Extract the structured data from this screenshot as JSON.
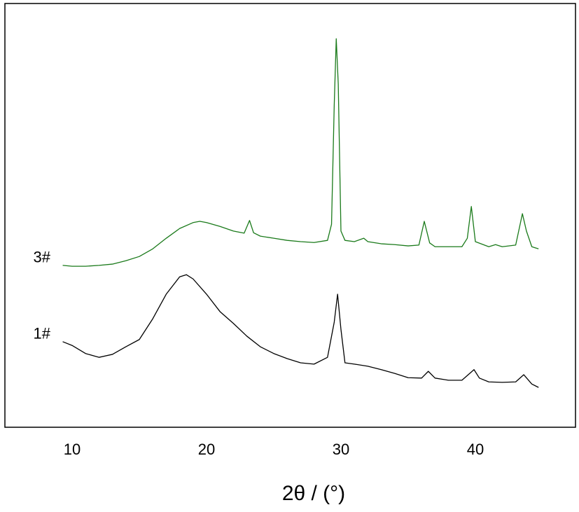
{
  "chart_data": {
    "type": "line",
    "x_label": "2θ / (°)",
    "xlim": [
      5,
      47.45
    ],
    "ylim": [
      0,
      100
    ],
    "xticks": [
      10,
      20,
      30,
      40
    ],
    "series": [
      {
        "name": "3#",
        "color": "#1a7a1a",
        "x": [
          9.3,
          10,
          11,
          12,
          13,
          14,
          15,
          16,
          17,
          18,
          19,
          19.5,
          20,
          21,
          22,
          22.8,
          23.2,
          23.5,
          24,
          25,
          26,
          27,
          28,
          29,
          29.3,
          29.5,
          29.65,
          29.8,
          30,
          30.3,
          31,
          31.7,
          32,
          33,
          34,
          35,
          35.8,
          36.2,
          36.6,
          37,
          38,
          39,
          39.4,
          39.7,
          40,
          41,
          41.5,
          42,
          43,
          43.5,
          43.8,
          44.2,
          44.7
        ],
        "values": [
          38.2,
          38.0,
          38.0,
          38.2,
          38.5,
          39.3,
          40.3,
          42.1,
          44.6,
          46.9,
          48.3,
          48.6,
          48.3,
          47.4,
          46.3,
          45.8,
          48.8,
          45.9,
          45.1,
          44.6,
          44.1,
          43.8,
          43.6,
          44.1,
          47.9,
          76.0,
          91.7,
          81.0,
          46.3,
          44.1,
          43.8,
          44.6,
          43.8,
          43.3,
          43.1,
          42.8,
          43.0,
          48.6,
          43.5,
          42.6,
          42.6,
          42.6,
          44.6,
          52.1,
          43.8,
          42.6,
          43.1,
          42.6,
          43.0,
          50.4,
          46.3,
          42.6,
          42.1
        ]
      },
      {
        "name": "1#",
        "color": "#000000",
        "x": [
          9.3,
          10,
          11,
          12,
          13,
          14,
          15,
          16,
          17,
          18,
          18.5,
          19,
          20,
          21,
          22,
          23,
          24,
          25,
          26,
          27,
          28,
          29,
          29.5,
          29.75,
          30,
          30.3,
          31,
          32,
          33,
          34,
          35,
          36,
          36.5,
          37,
          38,
          39,
          39.9,
          40.3,
          41,
          42,
          43,
          43.6,
          44.2,
          44.7
        ],
        "values": [
          20.2,
          19.3,
          17.4,
          16.5,
          17.2,
          19.0,
          20.7,
          25.6,
          31.4,
          35.5,
          36.0,
          35.0,
          31.4,
          27.3,
          24.5,
          21.5,
          19.0,
          17.4,
          16.2,
          15.2,
          14.9,
          16.5,
          24.8,
          31.4,
          23.1,
          15.2,
          14.9,
          14.4,
          13.6,
          12.7,
          11.7,
          11.6,
          13.2,
          11.6,
          11.1,
          11.1,
          13.6,
          11.6,
          10.7,
          10.6,
          10.7,
          12.4,
          10.2,
          9.4
        ]
      }
    ]
  }
}
